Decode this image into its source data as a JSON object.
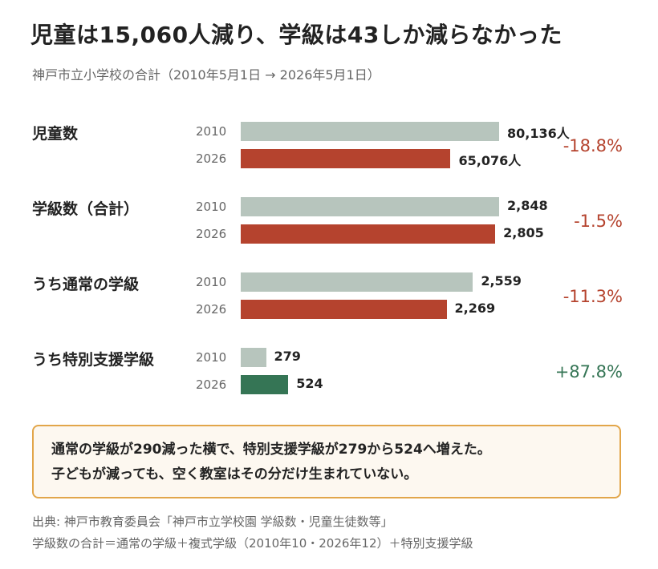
{
  "title": "児童は15,060人減り、学級は43しか減らなかった",
  "subtitle": "神戸市立小学校の合計（2010年5月1日 → 2026年5月1日）",
  "colors": {
    "bar_2010": "#b7c5bd",
    "bar_2026": "#b5432e",
    "bar_2026_positive": "#357555",
    "pct_negative": "#b5432e",
    "pct_positive": "#357555",
    "note_border": "#e2a64a"
  },
  "chart_data": {
    "type": "bar",
    "orientation": "horizontal",
    "title": "児童は15,060人減り、学級は43しか減らなかった",
    "subtitle": "神戸市立小学校の合計（2010年5月1日 → 2026年5月1日）",
    "groups": [
      {
        "label": "児童数",
        "change": "-18.8%",
        "rows": [
          {
            "year": "2010",
            "value": 80136,
            "value_label": "80,136人"
          },
          {
            "year": "2026",
            "value": 65076,
            "value_label": "65,076人"
          }
        ]
      },
      {
        "label": "学級数（合計）",
        "change": "-1.5%",
        "rows": [
          {
            "year": "2010",
            "value": 2848,
            "value_label": "2,848"
          },
          {
            "year": "2026",
            "value": 2805,
            "value_label": "2,805"
          }
        ]
      },
      {
        "label": "うち通常の学級",
        "change": "-11.3%",
        "rows": [
          {
            "year": "2010",
            "value": 2559,
            "value_label": "2,559"
          },
          {
            "year": "2026",
            "value": 2269,
            "value_label": "2,269"
          }
        ]
      },
      {
        "label": "うち特別支援学級",
        "change": "+87.8%",
        "rows": [
          {
            "year": "2010",
            "value": 279,
            "value_label": "279"
          },
          {
            "year": "2026",
            "value": 524,
            "value_label": "524"
          }
        ]
      }
    ]
  },
  "note": {
    "line1": "通常の学級が290減った横で、特別支援学級が279から524へ増えた。",
    "line2": "子どもが減っても、空く教室はその分だけ生まれていない。"
  },
  "source": {
    "line1": "出典: 神戸市教育委員会「神戸市立学校園 学級数・児童生徒数等」",
    "line2": "学級数の合計＝通常の学級＋複式学級（2010年10・2026年12）＋特別支援学級"
  }
}
